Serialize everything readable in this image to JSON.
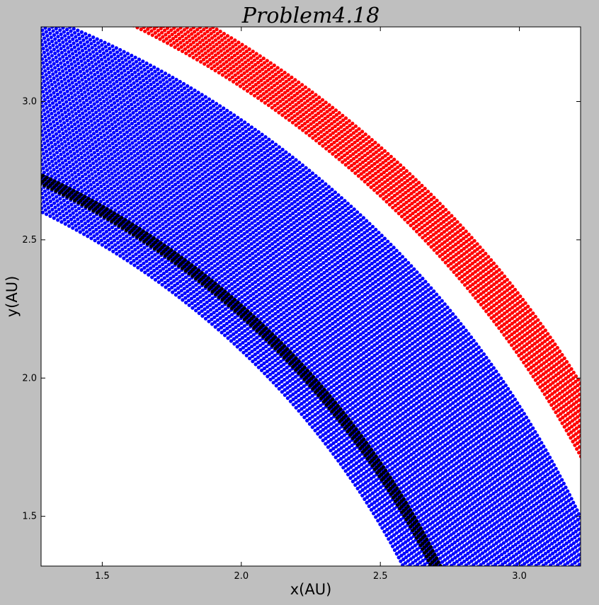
{
  "chart_data": {
    "type": "scatter",
    "title": "Problem4.18",
    "xlabel": "x(AU)",
    "ylabel": "y(AU)",
    "xlim": [
      1.28,
      3.22
    ],
    "ylim": [
      1.32,
      3.27
    ],
    "xticks": [
      1.5,
      2.0,
      2.5,
      3.0
    ],
    "xtick_labels": [
      "1.5",
      "2.0",
      "2.5",
      "3.0"
    ],
    "yticks": [
      1.5,
      2.0,
      2.5,
      3.0
    ],
    "ytick_labels": [
      "1.5",
      "2.0",
      "2.5",
      "3.0"
    ],
    "grid": false,
    "legend": "none",
    "series": [
      {
        "color": "#0000ff",
        "marker": "circle",
        "shape": "bundle of near-circular orbit arcs centred on the origin",
        "inner_radius_au": 2.9,
        "outer_radius_au": 3.55,
        "arc_x_range": [
          1.28,
          3.22
        ]
      },
      {
        "color": "#ff0000",
        "marker": "circle",
        "shape": "band of near-circular orbit arcs centred on the origin",
        "inner_radius_au": 3.65,
        "outer_radius_au": 3.78,
        "arc_x_range": [
          1.28,
          3.22
        ]
      },
      {
        "color": "#000000",
        "marker": "circle",
        "shape": "thin orbit arc centred on the origin",
        "inner_radius_au": 2.99,
        "outer_radius_au": 3.02,
        "arc_x_range": [
          1.28,
          3.22
        ]
      }
    ]
  }
}
